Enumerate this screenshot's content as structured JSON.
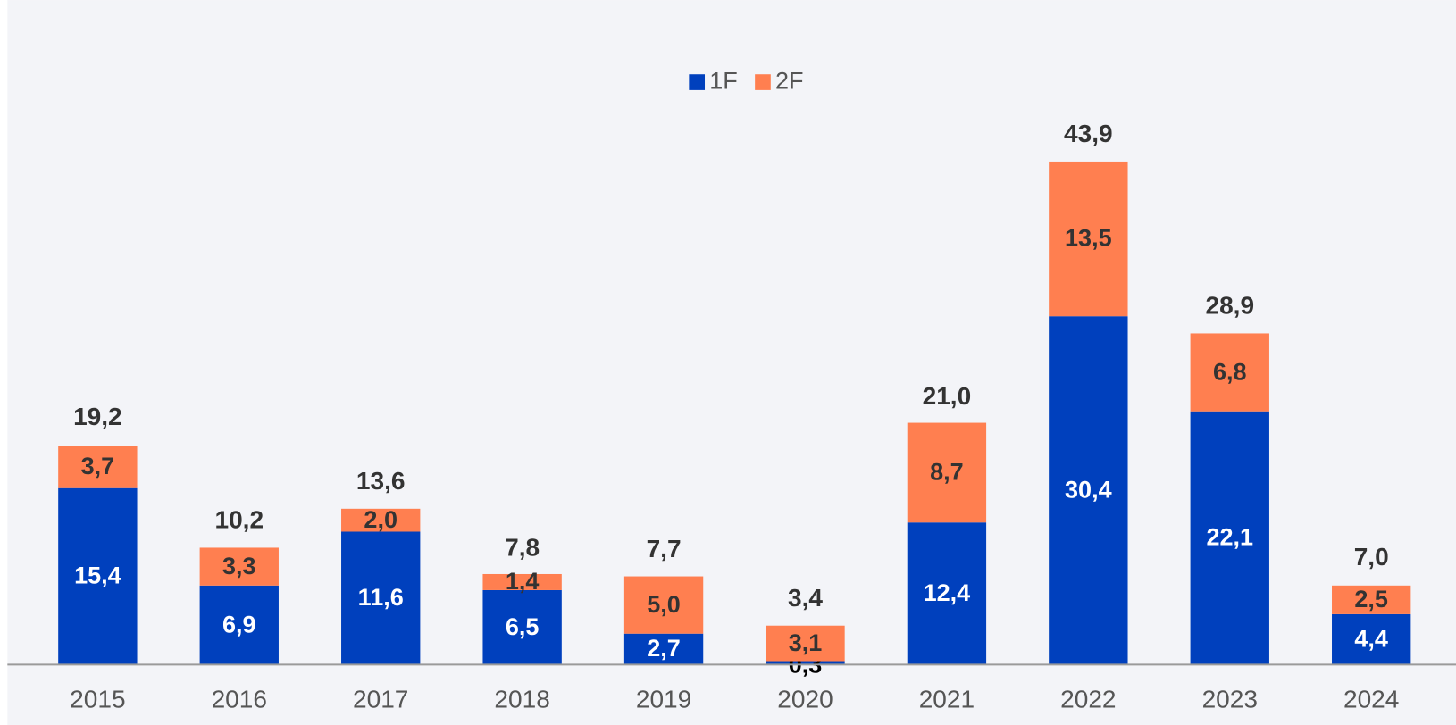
{
  "chart_data": {
    "type": "bar",
    "stacked": true,
    "categories": [
      "2015",
      "2016",
      "2017",
      "2018",
      "2019",
      "2020",
      "2021",
      "2022",
      "2023",
      "2024"
    ],
    "series": [
      {
        "name": "1F",
        "color": "#0040bd",
        "values": [
          15.4,
          6.9,
          11.6,
          6.5,
          2.7,
          0.3,
          12.4,
          30.4,
          22.1,
          4.4
        ],
        "value_labels": [
          "15,4",
          "6,9",
          "11,6",
          "6,5",
          "2,7",
          "0,3",
          "12,4",
          "30,4",
          "22,1",
          "4,4"
        ]
      },
      {
        "name": "2F",
        "color": "#ff7f50",
        "values": [
          3.7,
          3.3,
          2.0,
          1.4,
          5.0,
          3.1,
          8.7,
          13.5,
          6.8,
          2.5
        ],
        "value_labels": [
          "3,7",
          "3,3",
          "2,0",
          "1,4",
          "5,0",
          "3,1",
          "8,7",
          "13,5",
          "6,8",
          "2,5"
        ]
      }
    ],
    "totals": [
      19.2,
      10.2,
      13.6,
      7.8,
      7.7,
      3.4,
      21.0,
      43.9,
      28.9,
      7.0
    ],
    "total_labels": [
      "19,2",
      "10,2",
      "13,6",
      "7,8",
      "7,7",
      "3,4",
      "21,0",
      "43,9",
      "28,9",
      "7,0"
    ],
    "legend": "top"
  }
}
